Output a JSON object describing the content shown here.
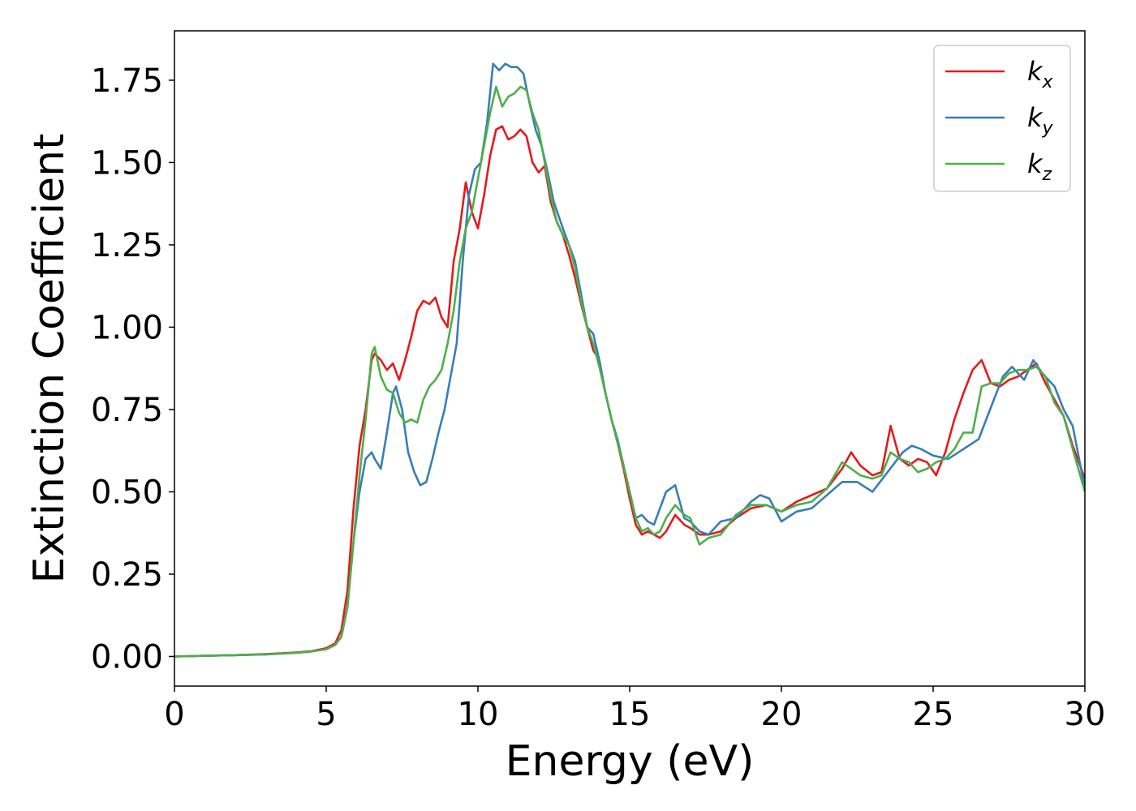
{
  "chart_data": {
    "type": "line",
    "xlabel": "Energy (eV)",
    "ylabel": "Extinction Coefficient",
    "xlim": [
      0,
      30
    ],
    "ylim": [
      -0.09,
      1.9
    ],
    "xticks": [
      0,
      5,
      10,
      15,
      20,
      25,
      30
    ],
    "xtick_labels": [
      "0",
      "5",
      "10",
      "15",
      "20",
      "25",
      "30"
    ],
    "yticks": [
      0.0,
      0.25,
      0.5,
      0.75,
      1.0,
      1.25,
      1.5,
      1.75
    ],
    "ytick_labels": [
      "0.00",
      "0.25",
      "0.50",
      "0.75",
      "1.00",
      "1.25",
      "1.50",
      "1.75"
    ],
    "grid": false,
    "legend_position": "top-right",
    "series": [
      {
        "name": "k",
        "subscript": "x",
        "color": "#e41a1c",
        "x": [
          0,
          1,
          2,
          3,
          4,
          4.5,
          5,
          5.3,
          5.5,
          5.7,
          5.9,
          6.1,
          6.3,
          6.5,
          6.6,
          6.8,
          7.0,
          7.2,
          7.4,
          7.6,
          7.8,
          8.0,
          8.2,
          8.4,
          8.6,
          8.8,
          9.0,
          9.2,
          9.4,
          9.6,
          9.8,
          10.0,
          10.2,
          10.4,
          10.6,
          10.8,
          11.0,
          11.2,
          11.4,
          11.6,
          11.8,
          12.0,
          12.2,
          12.4,
          12.6,
          12.8,
          13.0,
          13.2,
          13.4,
          13.6,
          13.8,
          14.0,
          14.2,
          14.4,
          14.6,
          14.8,
          15.0,
          15.2,
          15.4,
          15.6,
          15.8,
          16.0,
          16.2,
          16.5,
          16.8,
          17.0,
          17.3,
          17.6,
          18.0,
          18.5,
          19.0,
          19.5,
          20.0,
          20.5,
          21.0,
          21.5,
          22.0,
          22.3,
          22.6,
          23.0,
          23.3,
          23.6,
          23.9,
          24.2,
          24.5,
          24.8,
          25.1,
          25.4,
          25.7,
          26.0,
          26.3,
          26.6,
          26.9,
          27.2,
          27.5,
          27.8,
          28.1,
          28.4,
          28.7,
          29.0,
          29.3,
          29.6,
          30.0
        ],
        "values": [
          0.0,
          0.002,
          0.004,
          0.007,
          0.012,
          0.016,
          0.025,
          0.04,
          0.08,
          0.2,
          0.45,
          0.64,
          0.75,
          0.9,
          0.92,
          0.9,
          0.87,
          0.89,
          0.84,
          0.9,
          0.97,
          1.05,
          1.08,
          1.07,
          1.09,
          1.03,
          1.0,
          1.2,
          1.3,
          1.44,
          1.35,
          1.3,
          1.4,
          1.52,
          1.6,
          1.61,
          1.57,
          1.58,
          1.6,
          1.58,
          1.5,
          1.47,
          1.49,
          1.38,
          1.32,
          1.28,
          1.22,
          1.15,
          1.07,
          1.0,
          0.93,
          0.9,
          0.8,
          0.72,
          0.65,
          0.57,
          0.48,
          0.4,
          0.37,
          0.38,
          0.37,
          0.36,
          0.38,
          0.43,
          0.4,
          0.39,
          0.37,
          0.37,
          0.38,
          0.42,
          0.45,
          0.46,
          0.44,
          0.47,
          0.49,
          0.51,
          0.57,
          0.62,
          0.58,
          0.55,
          0.56,
          0.7,
          0.6,
          0.58,
          0.6,
          0.59,
          0.55,
          0.62,
          0.72,
          0.8,
          0.87,
          0.9,
          0.83,
          0.82,
          0.84,
          0.85,
          0.87,
          0.89,
          0.83,
          0.78,
          0.73,
          0.64,
          0.54
        ]
      },
      {
        "name": "k",
        "subscript": "y",
        "color": "#377eb8",
        "x": [
          0,
          1,
          2,
          3,
          4,
          4.5,
          5,
          5.3,
          5.5,
          5.7,
          5.9,
          6.1,
          6.3,
          6.5,
          6.6,
          6.8,
          7.0,
          7.2,
          7.3,
          7.5,
          7.7,
          7.9,
          8.1,
          8.3,
          8.5,
          8.7,
          8.9,
          9.1,
          9.3,
          9.5,
          9.7,
          9.9,
          10.1,
          10.3,
          10.5,
          10.7,
          10.9,
          11.1,
          11.3,
          11.5,
          11.7,
          11.9,
          12.1,
          12.3,
          12.5,
          12.8,
          13.0,
          13.2,
          13.4,
          13.6,
          13.8,
          14.0,
          14.2,
          14.4,
          14.6,
          14.8,
          15.0,
          15.2,
          15.4,
          15.6,
          15.8,
          16.0,
          16.2,
          16.5,
          16.8,
          17.0,
          17.3,
          17.6,
          18.0,
          18.5,
          19.0,
          19.3,
          19.6,
          20.0,
          20.5,
          21.0,
          21.5,
          22.0,
          22.5,
          23.0,
          23.5,
          24.0,
          24.3,
          24.6,
          25.0,
          25.5,
          26.0,
          26.5,
          27.0,
          27.3,
          27.6,
          28.0,
          28.3,
          28.6,
          29.0,
          29.3,
          29.6,
          30.0
        ],
        "values": [
          0.0,
          0.002,
          0.004,
          0.006,
          0.011,
          0.015,
          0.022,
          0.035,
          0.06,
          0.15,
          0.35,
          0.5,
          0.6,
          0.62,
          0.6,
          0.57,
          0.68,
          0.8,
          0.82,
          0.75,
          0.62,
          0.56,
          0.52,
          0.53,
          0.6,
          0.68,
          0.75,
          0.85,
          0.95,
          1.2,
          1.4,
          1.48,
          1.5,
          1.62,
          1.8,
          1.78,
          1.8,
          1.79,
          1.79,
          1.77,
          1.68,
          1.6,
          1.55,
          1.47,
          1.38,
          1.3,
          1.25,
          1.2,
          1.1,
          1.0,
          0.98,
          0.9,
          0.8,
          0.72,
          0.66,
          0.58,
          0.5,
          0.42,
          0.43,
          0.41,
          0.4,
          0.45,
          0.5,
          0.52,
          0.42,
          0.41,
          0.38,
          0.37,
          0.41,
          0.42,
          0.47,
          0.49,
          0.48,
          0.41,
          0.44,
          0.45,
          0.49,
          0.53,
          0.53,
          0.5,
          0.56,
          0.62,
          0.64,
          0.63,
          0.61,
          0.6,
          0.63,
          0.66,
          0.78,
          0.85,
          0.88,
          0.84,
          0.9,
          0.86,
          0.82,
          0.75,
          0.7,
          0.51
        ]
      },
      {
        "name": "k",
        "subscript": "z",
        "color": "#4daf4a",
        "x": [
          0,
          1,
          2,
          3,
          4,
          4.5,
          5,
          5.3,
          5.5,
          5.7,
          5.9,
          6.1,
          6.3,
          6.5,
          6.6,
          6.8,
          7.0,
          7.2,
          7.4,
          7.6,
          7.8,
          8.0,
          8.2,
          8.4,
          8.6,
          8.8,
          9.0,
          9.2,
          9.4,
          9.6,
          9.8,
          10.0,
          10.2,
          10.4,
          10.6,
          10.8,
          11.0,
          11.2,
          11.4,
          11.6,
          11.8,
          12.0,
          12.2,
          12.4,
          12.6,
          12.8,
          13.0,
          13.2,
          13.4,
          13.6,
          13.8,
          14.0,
          14.2,
          14.4,
          14.6,
          14.8,
          15.0,
          15.2,
          15.4,
          15.6,
          15.8,
          16.0,
          16.2,
          16.5,
          16.8,
          17.0,
          17.3,
          17.6,
          18.0,
          18.5,
          19.0,
          19.5,
          20.0,
          20.5,
          21.0,
          21.5,
          22.0,
          22.3,
          22.6,
          23.0,
          23.3,
          23.6,
          23.9,
          24.2,
          24.5,
          24.8,
          25.1,
          25.4,
          25.7,
          26.0,
          26.3,
          26.6,
          26.9,
          27.2,
          27.5,
          27.8,
          28.1,
          28.4,
          28.7,
          29.0,
          29.3,
          29.6,
          30.0
        ],
        "values": [
          0.0,
          0.002,
          0.004,
          0.006,
          0.011,
          0.015,
          0.022,
          0.035,
          0.06,
          0.15,
          0.35,
          0.55,
          0.72,
          0.92,
          0.94,
          0.85,
          0.81,
          0.8,
          0.74,
          0.71,
          0.72,
          0.71,
          0.78,
          0.82,
          0.84,
          0.87,
          0.95,
          1.05,
          1.2,
          1.3,
          1.35,
          1.45,
          1.55,
          1.65,
          1.73,
          1.67,
          1.7,
          1.71,
          1.73,
          1.72,
          1.65,
          1.6,
          1.5,
          1.4,
          1.32,
          1.28,
          1.25,
          1.18,
          1.08,
          1.0,
          0.95,
          0.88,
          0.8,
          0.72,
          0.65,
          0.58,
          0.5,
          0.42,
          0.38,
          0.39,
          0.37,
          0.38,
          0.42,
          0.46,
          0.43,
          0.42,
          0.34,
          0.36,
          0.37,
          0.43,
          0.46,
          0.46,
          0.44,
          0.46,
          0.47,
          0.51,
          0.59,
          0.57,
          0.55,
          0.54,
          0.55,
          0.62,
          0.6,
          0.59,
          0.56,
          0.57,
          0.59,
          0.6,
          0.63,
          0.68,
          0.68,
          0.82,
          0.83,
          0.83,
          0.86,
          0.87,
          0.87,
          0.88,
          0.85,
          0.77,
          0.73,
          0.63,
          0.5
        ]
      }
    ]
  }
}
